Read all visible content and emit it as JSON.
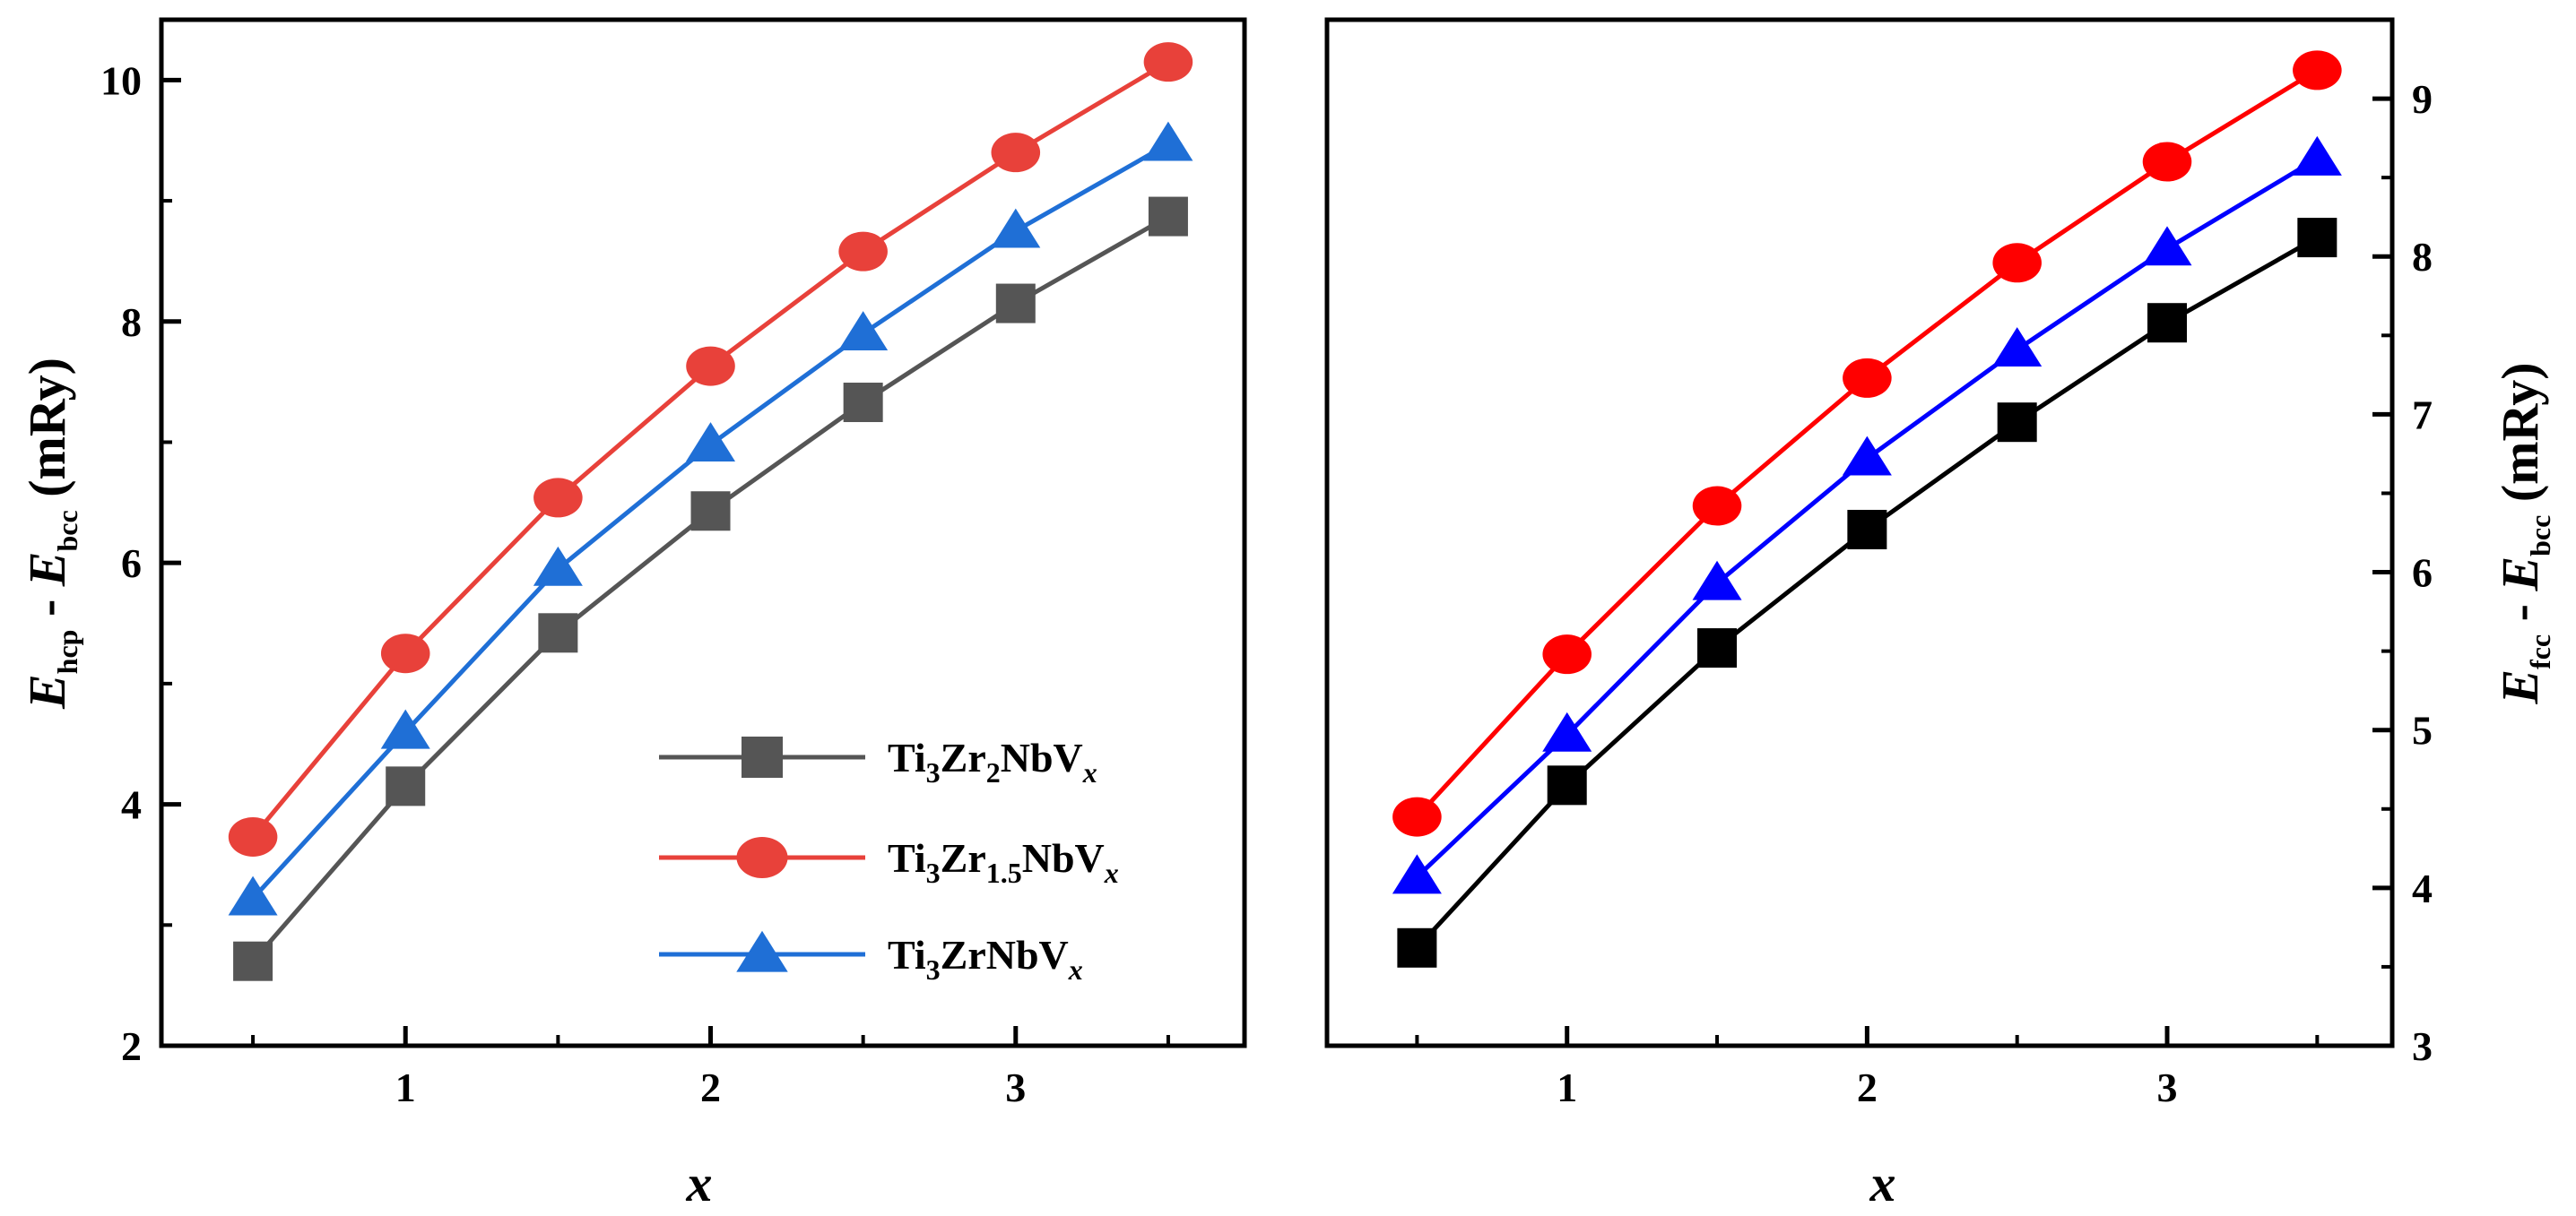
{
  "chart_data": [
    {
      "type": "line",
      "panel": "left",
      "x": [
        0.5,
        1,
        1.5,
        2,
        2.5,
        3,
        3.5
      ],
      "xlim": [
        0.2,
        3.75
      ],
      "ylim": [
        2,
        10.5
      ],
      "xticks": [
        "1",
        "2",
        "3"
      ],
      "yticks": [
        "2",
        "4",
        "6",
        "8",
        "10"
      ],
      "xlabel": "x",
      "ylabel": {
        "E1": "E",
        "sub1": "hcp",
        "minus": " - ",
        "E2": "E",
        "sub2": "bcc",
        "unit": " (mRy)"
      },
      "y_axis_side": "left",
      "legend_position": "lower-right",
      "series": [
        {
          "key": "zr2",
          "name": "Ti3Zr2NbVx",
          "marker": "square",
          "color": "#555555",
          "values": [
            2.7,
            4.15,
            5.42,
            6.43,
            7.33,
            8.15,
            8.87
          ]
        },
        {
          "key": "zr15",
          "name": "Ti3Zr1.5NbVx",
          "marker": "circle",
          "color": "#e8413a",
          "values": [
            3.73,
            5.25,
            6.54,
            7.63,
            8.58,
            9.4,
            10.15
          ]
        },
        {
          "key": "zr1",
          "name": "Ti3ZrNbVx",
          "marker": "triangle",
          "color": "#1f6fd6",
          "values": [
            3.22,
            4.6,
            5.95,
            6.98,
            7.9,
            8.75,
            9.47
          ]
        }
      ]
    },
    {
      "type": "line",
      "panel": "right",
      "x": [
        0.5,
        1,
        1.5,
        2,
        2.5,
        3,
        3.5
      ],
      "xlim": [
        0.2,
        3.75
      ],
      "ylim": [
        3,
        9.5
      ],
      "xticks": [
        "1",
        "2",
        "3"
      ],
      "yticks": [
        "3",
        "4",
        "5",
        "6",
        "7",
        "8",
        "9"
      ],
      "xlabel": "x",
      "ylabel": {
        "E1": "E",
        "sub1": "fcc",
        "minus": " - ",
        "E2": "E",
        "sub2": "bcc",
        "unit": " (mRy)"
      },
      "y_axis_side": "right",
      "series": [
        {
          "key": "zr2",
          "name": "Ti3Zr2NbVx",
          "marker": "square",
          "color": "#000000",
          "values": [
            3.62,
            4.65,
            5.52,
            6.27,
            6.95,
            7.58,
            8.12
          ]
        },
        {
          "key": "zr15",
          "name": "Ti3Zr1.5NbVx",
          "marker": "circle",
          "color": "#ff0000",
          "values": [
            4.45,
            5.48,
            6.42,
            7.23,
            7.96,
            8.6,
            9.18
          ]
        },
        {
          "key": "zr1",
          "name": "Ti3ZrNbVx",
          "marker": "triangle",
          "color": "#0000ff",
          "values": [
            4.07,
            4.97,
            5.93,
            6.72,
            7.41,
            8.05,
            8.62
          ]
        }
      ]
    }
  ],
  "legend": [
    {
      "key": "zr2",
      "marker": "square",
      "color": "#555555",
      "base": "Ti",
      "s1": "3",
      "mid": "Zr",
      "s2": "2",
      "tail": "NbV",
      "s3": "x"
    },
    {
      "key": "zr15",
      "marker": "circle",
      "color": "#e8413a",
      "base": "Ti",
      "s1": "3",
      "mid": "Zr",
      "s2": "1.5",
      "tail": "NbV",
      "s3": "x"
    },
    {
      "key": "zr1",
      "marker": "triangle",
      "color": "#1f6fd6",
      "base": "Ti",
      "s1": "3",
      "mid": "ZrNbV",
      "s2": "",
      "tail": "",
      "s3": "x"
    }
  ]
}
